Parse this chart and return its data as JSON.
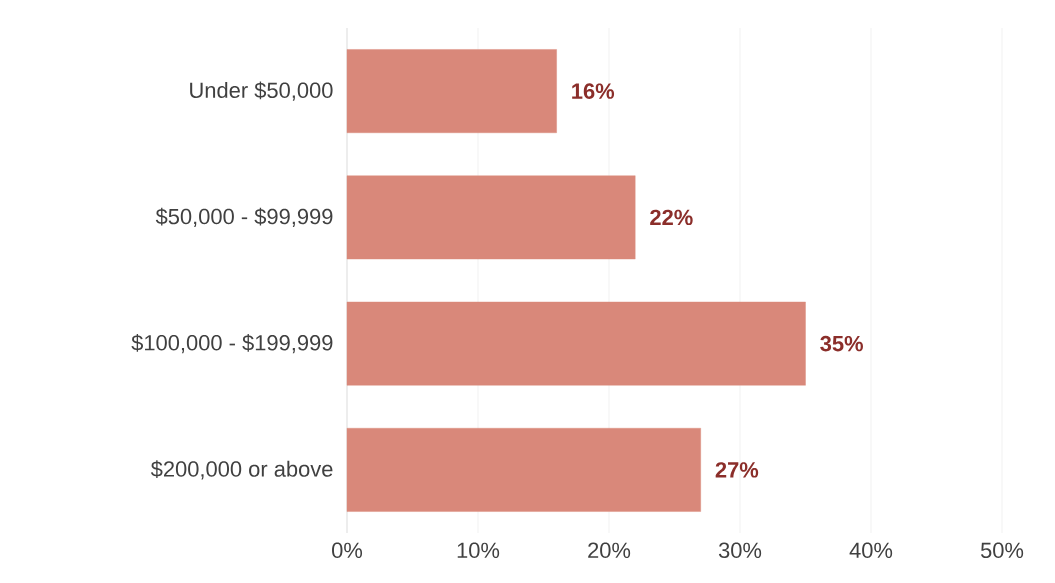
{
  "chart_data": {
    "type": "bar",
    "orientation": "horizontal",
    "categories": [
      "Under $50,000",
      "$50,000 - $99,999",
      "$100,000 - $199,999",
      "$200,000 or above"
    ],
    "values": [
      16,
      22,
      35,
      27
    ],
    "value_labels": [
      "16%",
      "22%",
      "35%",
      "27%"
    ],
    "color": "#d9887a",
    "xlim": [
      0,
      50
    ],
    "xticks": [
      {
        "value": 0,
        "label": "0%"
      },
      {
        "value": 10,
        "label": "10%"
      },
      {
        "value": 20,
        "label": "20%"
      },
      {
        "value": 30,
        "label": "30%"
      },
      {
        "value": 40,
        "label": "40%"
      },
      {
        "value": 50,
        "label": "50%"
      }
    ],
    "grid": "x"
  }
}
